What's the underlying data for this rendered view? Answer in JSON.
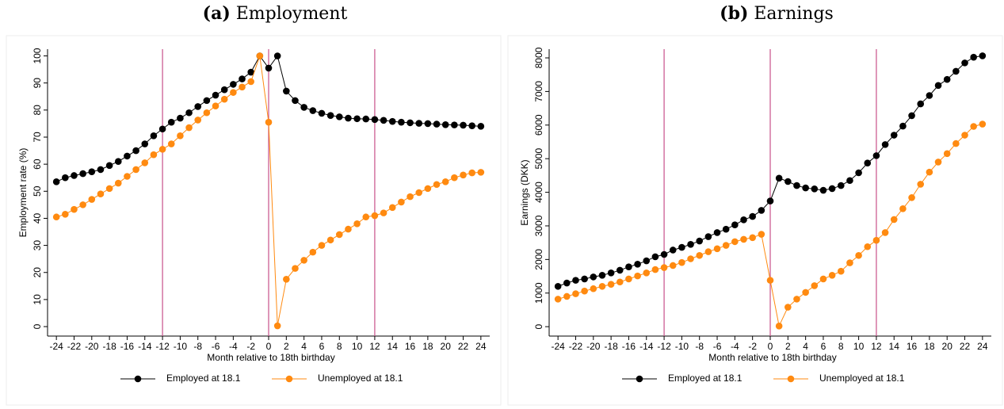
{
  "chart_data": [
    {
      "type": "line",
      "panel": "(a)",
      "title": "Employment",
      "ylabel": "Employment rate (%)",
      "xlabel": "Month relative to 18th birthday",
      "x": [
        -24,
        -23,
        -22,
        -21,
        -20,
        -19,
        -18,
        -17,
        -16,
        -15,
        -14,
        -13,
        -12,
        -11,
        -10,
        -9,
        -8,
        -7,
        -6,
        -5,
        -4,
        -3,
        -2,
        -1,
        0,
        1,
        2,
        3,
        4,
        5,
        6,
        7,
        8,
        9,
        10,
        11,
        12,
        13,
        14,
        15,
        16,
        17,
        18,
        19,
        20,
        21,
        22,
        23,
        24
      ],
      "series": [
        {
          "name": "Employed at 18.1",
          "color": "#000000",
          "values": [
            53.5,
            55,
            55.8,
            56.5,
            57.2,
            58,
            59.5,
            61,
            63,
            65,
            67.5,
            70.5,
            73,
            75.5,
            77,
            79,
            81.3,
            83.5,
            85.5,
            87.5,
            89.5,
            91.5,
            94,
            100,
            95.5,
            100,
            87,
            83.5,
            81,
            79.8,
            78.8,
            78,
            77.5,
            77,
            76.8,
            76.7,
            76.5,
            76.2,
            75.8,
            75.5,
            75.3,
            75.1,
            75,
            74.8,
            74.6,
            74.5,
            74.4,
            74.2,
            74
          ]
        },
        {
          "name": "Unemployed at 18.1",
          "color": "#ff8a10",
          "values": [
            40.5,
            41.5,
            43.3,
            45,
            47,
            49,
            51,
            53,
            55.5,
            58,
            60.5,
            63.5,
            65.5,
            67.5,
            70.5,
            73.5,
            76.3,
            79,
            81.5,
            84,
            86.5,
            88.5,
            90.5,
            100,
            75.5,
            0.3,
            17.5,
            21.5,
            24.5,
            27.5,
            30,
            32,
            34,
            36,
            38,
            40.5,
            41,
            42,
            44,
            46,
            48,
            49.5,
            51,
            52.5,
            53.5,
            55,
            56,
            56.8,
            57
          ]
        }
      ],
      "xlim": [
        -25,
        25
      ],
      "xticks": [
        -24,
        -22,
        -20,
        -18,
        -16,
        -14,
        -12,
        -10,
        -8,
        -6,
        -4,
        -2,
        0,
        2,
        4,
        6,
        8,
        10,
        12,
        14,
        16,
        18,
        20,
        22,
        24
      ],
      "ylim": [
        -3.5,
        102.5
      ],
      "yticks": [
        0,
        10,
        20,
        30,
        40,
        50,
        60,
        70,
        80,
        90,
        100
      ],
      "vlines": [
        -12,
        0,
        12
      ],
      "vline_color": "#c8508a",
      "grid": false,
      "legend": "bottom"
    },
    {
      "type": "line",
      "panel": "(b)",
      "title": "Earnings",
      "ylabel": "Earnings (DKK)",
      "xlabel": "Month relative to 18th birthday",
      "x": [
        -24,
        -23,
        -22,
        -21,
        -20,
        -19,
        -18,
        -17,
        -16,
        -15,
        -14,
        -13,
        -12,
        -11,
        -10,
        -9,
        -8,
        -7,
        -6,
        -5,
        -4,
        -3,
        -2,
        -1,
        0,
        1,
        2,
        3,
        4,
        5,
        6,
        7,
        8,
        9,
        10,
        11,
        12,
        13,
        14,
        15,
        16,
        17,
        18,
        19,
        20,
        21,
        22,
        23,
        24
      ],
      "series": [
        {
          "name": "Employed at 18.1",
          "color": "#000000",
          "values": [
            1200,
            1300,
            1380,
            1420,
            1480,
            1530,
            1600,
            1680,
            1780,
            1860,
            1960,
            2080,
            2150,
            2280,
            2360,
            2450,
            2550,
            2680,
            2800,
            2900,
            3030,
            3180,
            3280,
            3460,
            3740,
            4420,
            4320,
            4200,
            4130,
            4100,
            4060,
            4110,
            4200,
            4350,
            4580,
            4870,
            5090,
            5420,
            5700,
            5970,
            6280,
            6630,
            6880,
            7180,
            7360,
            7600,
            7850,
            8020,
            8060
          ]
        },
        {
          "name": "Unemployed at 18.1",
          "color": "#ff8a10",
          "values": [
            820,
            900,
            980,
            1060,
            1130,
            1200,
            1260,
            1330,
            1420,
            1510,
            1600,
            1700,
            1760,
            1820,
            1910,
            2020,
            2120,
            2230,
            2320,
            2420,
            2530,
            2600,
            2650,
            2750,
            1380,
            20,
            580,
            820,
            1020,
            1220,
            1420,
            1530,
            1650,
            1900,
            2120,
            2380,
            2570,
            2800,
            3190,
            3510,
            3840,
            4240,
            4600,
            4900,
            5150,
            5450,
            5700,
            5960,
            6030
          ]
        }
      ],
      "xlim": [
        -25,
        25
      ],
      "xticks": [
        -24,
        -22,
        -20,
        -18,
        -16,
        -14,
        -12,
        -10,
        -8,
        -6,
        -4,
        -2,
        0,
        2,
        4,
        6,
        8,
        10,
        12,
        14,
        16,
        18,
        20,
        22,
        24
      ],
      "ylim": [
        -280,
        8260
      ],
      "yticks": [
        0,
        1000,
        2000,
        3000,
        4000,
        5000,
        6000,
        7000,
        8000
      ],
      "vlines": [
        -12,
        0,
        12
      ],
      "vline_color": "#c8508a",
      "grid": false,
      "legend": "bottom"
    }
  ]
}
